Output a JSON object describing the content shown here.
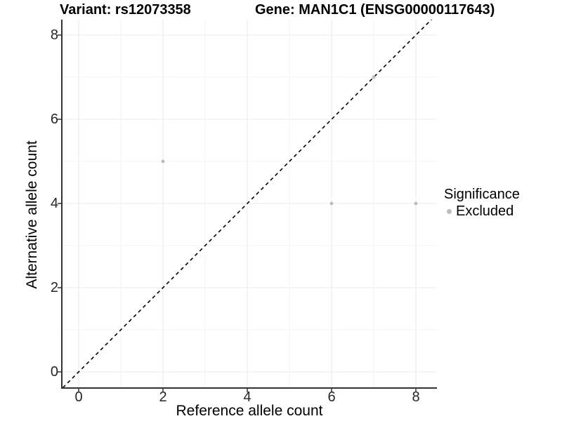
{
  "chart_data": {
    "type": "scatter",
    "titles": {
      "left": "Variant: rs12073358",
      "right": "Gene: MAN1C1 (ENSG00000117643)"
    },
    "xlabel": "Reference allele count",
    "ylabel": "Alternative allele count",
    "xlim": [
      -0.4,
      8.5
    ],
    "ylim": [
      -0.38,
      8.38
    ],
    "x_tick_values": [
      0,
      2,
      4,
      6,
      8
    ],
    "x_tick_labels": [
      "0",
      "2",
      "4",
      "6",
      "8"
    ],
    "y_tick_values": [
      0,
      2,
      4,
      6,
      8
    ],
    "y_tick_labels": [
      "0",
      "2",
      "4",
      "6",
      "8"
    ],
    "minor_grid_values": [
      1,
      3,
      5,
      7
    ],
    "grid": "major_and_minor",
    "identity_line": {
      "equation": "y = x",
      "style": "dashed",
      "color": "#000000"
    },
    "series": [
      {
        "name": "Excluded",
        "color": "#bdbdbd",
        "points": [
          [
            2,
            5
          ],
          [
            6,
            4
          ],
          [
            7,
            7
          ],
          [
            8,
            4
          ]
        ]
      }
    ],
    "legend": {
      "title": "Significance",
      "position": "right",
      "entries": [
        {
          "label": "Excluded",
          "color": "#bdbdbd"
        }
      ]
    }
  },
  "colors": {
    "background": "#ffffff",
    "axis_line": "#333333",
    "tick_label": "#262626",
    "grid_major": "#ebebeb",
    "grid_minor": "#f4f4f4",
    "point": "#bdbdbd",
    "dashed_line": "#000000"
  }
}
